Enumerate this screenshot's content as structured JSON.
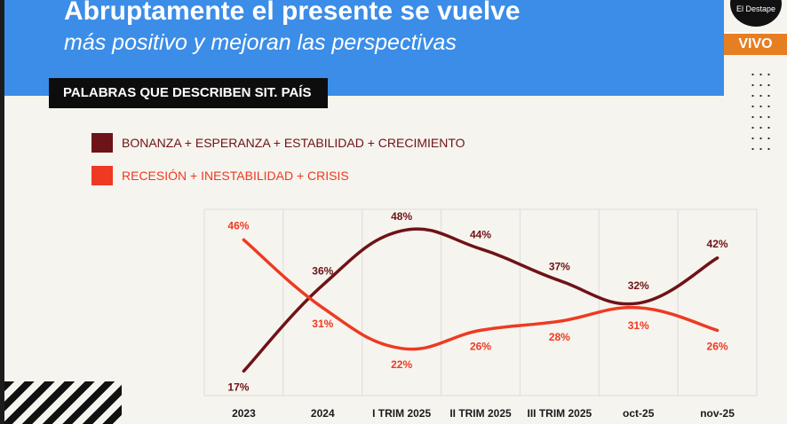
{
  "header": {
    "title_line1": "Abruptamente el presente se vuelve",
    "title_line2": "más positivo y mejoran las perspectivas"
  },
  "broadcast": {
    "logo_text": "El Destape",
    "live_badge": "VIVO"
  },
  "section_label": "PALABRAS QUE DESCRIBEN SIT. PAÍS",
  "colors": {
    "header_bg": "#3b8de8",
    "series_positive": "#6e1318",
    "series_negative": "#ee3a22",
    "live_badge": "#e67e22"
  },
  "chart_data": {
    "type": "line",
    "categories": [
      "2023",
      "2024",
      "I TRIM 2025",
      "II TRIM 2025",
      "III TRIM 2025",
      "oct-25",
      "nov-25"
    ],
    "series": [
      {
        "name": "BONANZA + ESPERANZA + ESTABILIDAD + CRECIMIENTO",
        "values": [
          17,
          36,
          48,
          44,
          37,
          32,
          42
        ],
        "labels": [
          "17%",
          "36%",
          "48%",
          "44%",
          "37%",
          "32%",
          "42%"
        ]
      },
      {
        "name": "RECESIÓN + INESTABILIDAD + CRISIS",
        "values": [
          46,
          31,
          22,
          26,
          28,
          31,
          26
        ],
        "labels": [
          "46%",
          "31%",
          "22%",
          "26%",
          "28%",
          "31%",
          "26%"
        ]
      }
    ],
    "title": "",
    "xlabel": "",
    "ylabel": "",
    "grid": "vertical"
  }
}
